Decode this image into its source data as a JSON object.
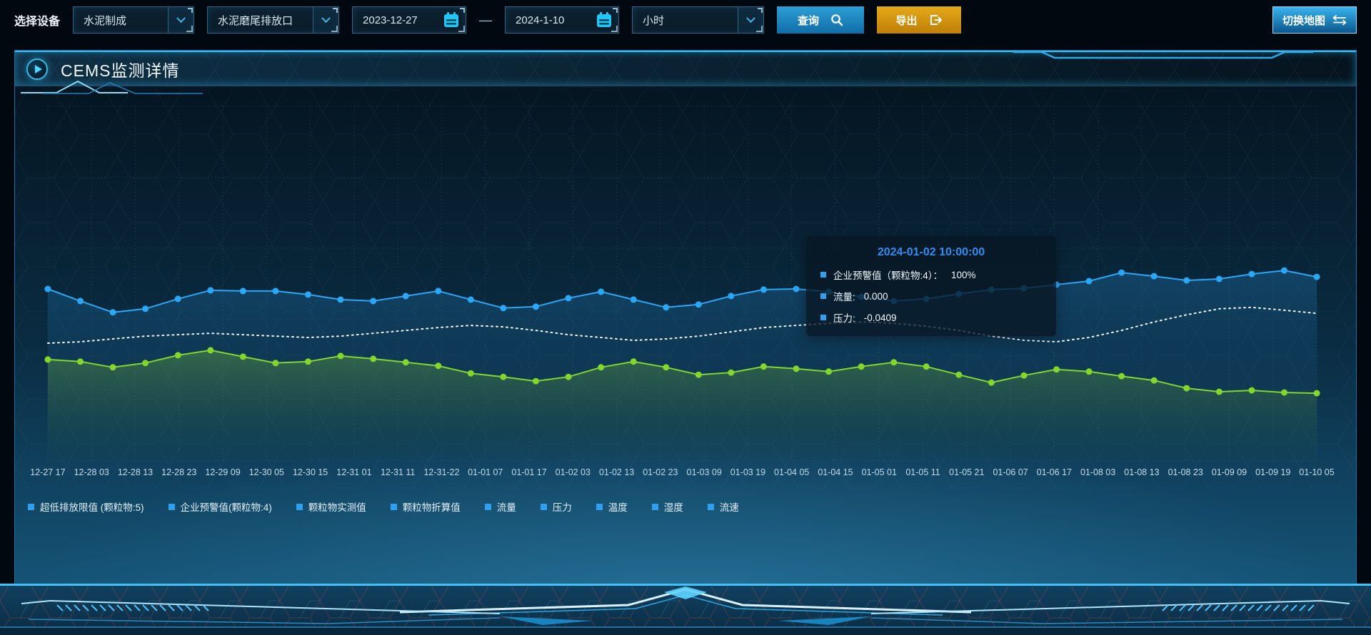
{
  "toolbar": {
    "device_label": "选择设备",
    "select_device": "水泥制成",
    "select_outlet": "水泥磨尾排放口",
    "date_start": "2023-12-27",
    "date_separator": "—",
    "date_end": "2024-1-10",
    "select_interval": "小时",
    "query_label": "查询",
    "export_label": "导出",
    "map_toggle_label": "切换地图"
  },
  "panel": {
    "title": "CEMS监测详情"
  },
  "tooltip": {
    "title": "2024-01-02 10:00:00",
    "items": [
      {
        "label": "企业预警值（颗粒物:4）：",
        "value": "100%"
      },
      {
        "label": "流量:",
        "value": "0.000"
      },
      {
        "label": "压力:",
        "value": "-0.0409"
      }
    ]
  },
  "chart_data": {
    "type": "line",
    "title": "",
    "xlabel": "",
    "ylabel": "",
    "grid": true,
    "y_axis_visible": false,
    "note": "no y-axis scale shown on screen; series values stored as percent of plot height measured from plot top",
    "x_labels": [
      "12-27 17",
      "12-28 03",
      "12-28 13",
      "12-28 23",
      "12-29 09",
      "12-30 05",
      "12-30 15",
      "12-31 01",
      "12-31 11",
      "12-31-22",
      "01-01 07",
      "01-01 17",
      "01-02 03",
      "01-02 13",
      "01-02 23",
      "01-03 09",
      "01-03 19",
      "01-04 05",
      "01-04 15",
      "01-05 01",
      "01-05 11",
      "01-05 21",
      "01-06 07",
      "01-06 17",
      "01-08 03",
      "01-08 13",
      "01-08 23",
      "01-09 09",
      "01-09 19",
      "01-10 05"
    ],
    "series": [
      {
        "name": "blue-line",
        "color": "#2ba7f7",
        "style": "solid",
        "markers": true,
        "area": "rgba(38,120,185,0.30)",
        "values_pct": [
          51.5,
          54.9,
          58.1,
          57.1,
          54.3,
          51.9,
          52.1,
          52.1,
          53.1,
          54.5,
          54.9,
          53.5,
          52.1,
          54.5,
          56.9,
          56.5,
          54.1,
          52.3,
          54.5,
          56.7,
          55.9,
          53.5,
          51.7,
          51.5,
          52.3,
          53.7,
          54.9,
          54.3,
          52.9,
          51.7,
          51.3,
          50.3,
          49.3,
          46.9,
          47.9,
          49.1,
          48.7,
          47.3,
          46.3,
          48.1
        ]
      },
      {
        "name": "white-dotted-line",
        "color": "#eef7fc",
        "style": "dotted",
        "markers": false,
        "area": null,
        "values_pct": [
          66.8,
          66.4,
          65.6,
          64.8,
          64.4,
          64.0,
          64.4,
          64.8,
          65.2,
          64.8,
          64.0,
          63.2,
          62.4,
          61.8,
          62.2,
          63.2,
          64.4,
          65.2,
          66.0,
          65.6,
          64.8,
          63.6,
          62.4,
          61.8,
          61.2,
          60.8,
          61.2,
          62.0,
          63.2,
          64.8,
          66.0,
          66.4,
          65.2,
          63.2,
          60.8,
          58.8,
          57.1,
          56.7,
          57.5,
          58.4
        ]
      },
      {
        "name": "green-line",
        "color": "#83d62e",
        "style": "solid",
        "markers": true,
        "area": "rgba(120,190,50,0.30)",
        "values_pct": [
          71.4,
          72.0,
          73.6,
          72.4,
          70.2,
          68.8,
          70.6,
          72.4,
          72.0,
          70.4,
          71.2,
          72.2,
          73.2,
          75.3,
          76.3,
          77.5,
          76.3,
          73.6,
          72.0,
          73.6,
          75.7,
          75.1,
          73.4,
          74.0,
          74.8,
          73.4,
          72.2,
          73.4,
          75.7,
          77.9,
          75.9,
          74.2,
          74.8,
          76.1,
          77.3,
          79.5,
          80.5,
          80.1,
          80.7,
          80.9
        ]
      }
    ],
    "legend": [
      "超低排放限值 (颗粒物:5)",
      "企业预警值(颗粒物:4)",
      "颗粒物实测值",
      "颗粒物折算值",
      "流量",
      "压力",
      "温度",
      "湿度",
      "流速"
    ],
    "legend_marker_color": "#2f9ff0"
  },
  "colors": {
    "accent_cyan": "#35c0f5",
    "calendar_icon": "#1fc9f7",
    "query_button": "#1a86bd",
    "export_button": "#d49510",
    "tooltip_title": "#2f8ef2"
  }
}
